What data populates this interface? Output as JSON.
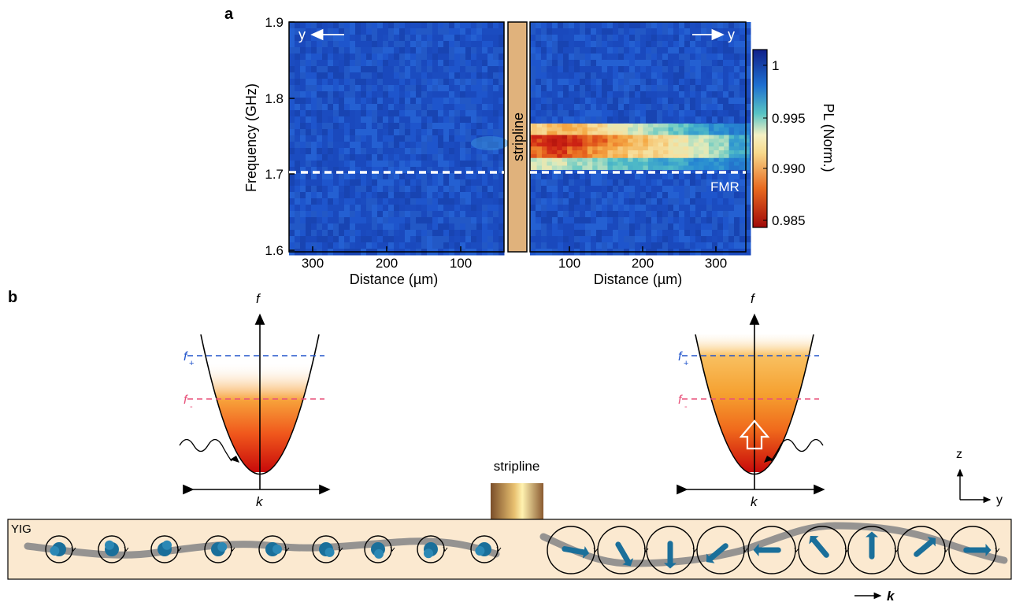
{
  "panel_a": {
    "label": "a",
    "ylabel": "Frequency (GHz)",
    "xlabel_left": "Distance (µm)",
    "xlabel_right": "Distance (µm)",
    "stripline_label": "stripline",
    "fmr_label": "FMR",
    "arrow_left_label": "y",
    "arrow_right_label": "y",
    "y_ticks": [
      "1.9",
      "1.8",
      "1.7",
      "1.6"
    ],
    "x_ticks_left": [
      "300",
      "200",
      "100"
    ],
    "x_ticks_right": [
      "100",
      "200",
      "300"
    ],
    "colorbar_label": "PL (Norm.)",
    "colorbar_ticks": [
      "1",
      "0.995",
      "0.990",
      "0.985"
    ],
    "colors": {
      "background": "#1c4fc4",
      "hot": "#c01010",
      "warm": "#f4a030",
      "cream": "#f5e6b0",
      "teal": "#30b0c0",
      "stripline": "#e0b27c"
    }
  },
  "chart_data": {
    "type": "heatmap",
    "title": "",
    "xlabel": "Distance (µm)",
    "ylabel": "Frequency (GHz)",
    "colorbar_label": "PL (Norm.)",
    "ylim": [
      1.6,
      1.9
    ],
    "xlim_left": [
      340,
      20
    ],
    "xlim_right": [
      20,
      340
    ],
    "colorbar_range": [
      0.984,
      1.001
    ],
    "fmr_frequency": 1.7,
    "rows_frequency_GHz": [
      1.76,
      1.745,
      1.73,
      1.715
    ],
    "right_columns_distance_um": [
      30,
      60,
      90,
      120,
      150,
      180,
      210,
      240,
      270,
      300,
      330
    ],
    "right_values": [
      [
        0.991,
        0.99,
        0.99,
        0.991,
        0.992,
        0.993,
        0.994,
        0.995,
        0.996,
        0.997,
        0.998
      ],
      [
        0.987,
        0.986,
        0.987,
        0.988,
        0.989,
        0.99,
        0.991,
        0.992,
        0.993,
        0.994,
        0.996
      ],
      [
        0.988,
        0.987,
        0.988,
        0.989,
        0.99,
        0.991,
        0.991,
        0.992,
        0.993,
        0.994,
        0.996
      ],
      [
        0.993,
        0.993,
        0.994,
        0.994,
        0.995,
        0.995,
        0.996,
        0.996,
        0.997,
        0.997,
        0.998
      ]
    ],
    "left_values_note_level": 0.999
  },
  "panel_b": {
    "label": "b",
    "f_axis": "f",
    "k_axis": "k",
    "f_plus": "f",
    "f_plus_sub": "+",
    "f_minus": "f",
    "f_minus_sub": "-",
    "stripline_label": "stripline",
    "yig_label": "YIG",
    "axis_z": "z",
    "axis_y": "y",
    "k_arrow_label": "k",
    "colors": {
      "f_plus": "#2255cc",
      "f_minus": "#e8507a",
      "yig_fill": "#fbe9d0",
      "spin": "#1a6f9a",
      "wave": "#8a8a8a"
    }
  }
}
